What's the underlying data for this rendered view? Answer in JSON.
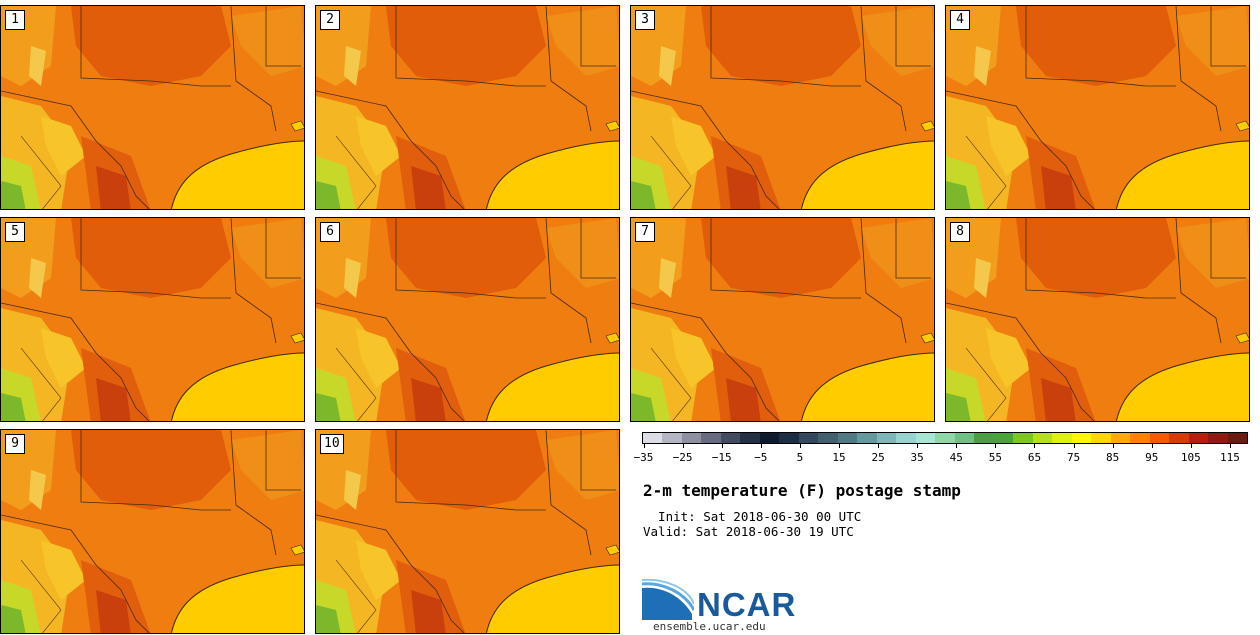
{
  "panels": [
    {
      "label": "1"
    },
    {
      "label": "2"
    },
    {
      "label": "3"
    },
    {
      "label": "4"
    },
    {
      "label": "5"
    },
    {
      "label": "6"
    },
    {
      "label": "7"
    },
    {
      "label": "8"
    },
    {
      "label": "9"
    },
    {
      "label": "10"
    }
  ],
  "colorbar": {
    "colors": [
      "#dcdde6",
      "#b4b6c3",
      "#8d90a1",
      "#676c80",
      "#434c63",
      "#253047",
      "#0f1a2f",
      "#1d2d44",
      "#34495e",
      "#436070",
      "#527a86",
      "#6698a0",
      "#7fb7b8",
      "#98d4cf",
      "#a9e5d5",
      "#8fd7a6",
      "#6fc283",
      "#4e9e45",
      "#4aa43a",
      "#7cc626",
      "#b6e01a",
      "#dff20c",
      "#fff700",
      "#ffd700",
      "#ffaa00",
      "#ff8300",
      "#f35b0c",
      "#d43c0e",
      "#b4200c",
      "#8d1c12",
      "#6b1a10"
    ],
    "tick_labels": [
      "-35",
      "-25",
      "-15",
      "-5",
      "5",
      "15",
      "25",
      "35",
      "45",
      "55",
      "65",
      "75",
      "85",
      "95",
      "105",
      "115"
    ]
  },
  "title": "2-m temperature (F) postage stamp",
  "init": "  Init: Sat 2018-06-30 00 UTC",
  "valid": "Valid: Sat 2018-06-30 19 UTC",
  "logo_text": "NCAR",
  "site": "ensemble.ucar.edu"
}
